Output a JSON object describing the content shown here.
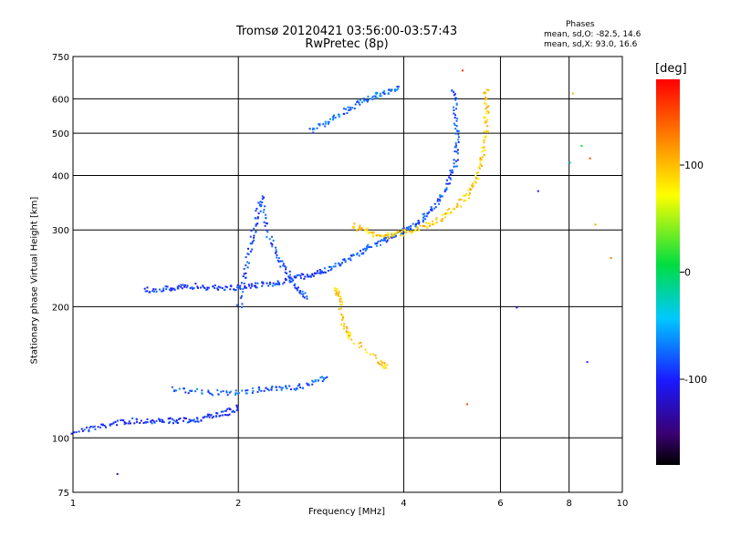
{
  "title": {
    "line1": "Tromsø 20120421 03:56:00-03:57:43",
    "line2": "RwPretec (8p)"
  },
  "phases": {
    "title": "Phases",
    "o_mode": "mean, sd,O: -82.5, 14.6",
    "x_mode": "mean, sd,X:  93.0, 16.6"
  },
  "colorbar": {
    "unit": "[deg]",
    "ticks": [
      {
        "value": 100,
        "label": "100"
      },
      {
        "value": 0,
        "label": "0"
      },
      {
        "value": -100,
        "label": "-100"
      }
    ],
    "range": [
      -180,
      180
    ]
  },
  "chart_data": {
    "type": "scatter",
    "xlabel": "Frequency [MHz]",
    "ylabel": "Stationary phase Virtual Height [km]",
    "x_scale": "log",
    "y_scale": "log",
    "xlim": [
      1,
      10
    ],
    "ylim": [
      75,
      750
    ],
    "x_ticks": [
      {
        "value": 1,
        "label": "1"
      },
      {
        "value": 2,
        "label": "2"
      },
      {
        "value": 4,
        "label": "4"
      },
      {
        "value": 6,
        "label": "6"
      },
      {
        "value": 8,
        "label": "8"
      },
      {
        "value": 10,
        "label": "10"
      }
    ],
    "y_ticks": [
      {
        "value": 75,
        "label": "75"
      },
      {
        "value": 100,
        "label": "100"
      },
      {
        "value": 200,
        "label": "200"
      },
      {
        "value": 300,
        "label": "300"
      },
      {
        "value": 400,
        "label": "400"
      },
      {
        "value": 500,
        "label": "500"
      },
      {
        "value": 600,
        "label": "600"
      },
      {
        "value": 750,
        "label": "750"
      }
    ],
    "grid": true,
    "color_variable": "phase [deg]",
    "traces": [
      {
        "description": "E-region trace",
        "phase": -95,
        "x": [
          1.0,
          1.1,
          1.2,
          1.3,
          1.4,
          1.5,
          1.6,
          1.7,
          1.8,
          1.9,
          2.0
        ],
        "y": [
          104,
          106,
          109,
          110,
          110,
          110,
          110,
          111,
          113,
          115,
          118
        ]
      },
      {
        "description": "lower F trace",
        "phase": -90,
        "x": [
          1.35,
          1.45,
          1.55,
          1.65,
          1.8,
          1.95,
          2.1,
          2.25,
          2.4,
          2.55,
          2.7,
          2.85
        ],
        "y": [
          220,
          220,
          222,
          224,
          222,
          222,
          224,
          226,
          229,
          234,
          238,
          242
        ]
      },
      {
        "description": "F-region vertical smear",
        "phase": -85,
        "x": [
          2.0,
          2.05,
          2.1,
          2.15,
          2.2,
          2.25,
          2.35,
          2.45,
          2.55,
          2.65
        ],
        "y": [
          200,
          240,
          280,
          320,
          360,
          300,
          260,
          240,
          220,
          210
        ]
      },
      {
        "description": "mid-band band",
        "phase": -80,
        "x": [
          1.5,
          1.7,
          1.9,
          2.1,
          2.3,
          2.5,
          2.7,
          2.9
        ],
        "y": [
          130,
          128,
          127,
          129,
          130,
          131,
          133,
          140
        ]
      },
      {
        "description": "O-mode F2 trace",
        "phase": -82,
        "x": [
          2.8,
          3.0,
          3.2,
          3.4,
          3.6,
          3.8,
          4.0,
          4.2,
          4.4,
          4.6,
          4.8,
          4.95,
          5.0,
          4.95,
          4.9
        ],
        "y": [
          240,
          250,
          262,
          272,
          282,
          292,
          300,
          312,
          328,
          350,
          385,
          430,
          490,
          560,
          640
        ]
      },
      {
        "description": "upper F trace",
        "phase": -75,
        "x": [
          2.7,
          2.9,
          3.1,
          3.3,
          3.5,
          3.7,
          3.9
        ],
        "y": [
          510,
          530,
          560,
          590,
          610,
          625,
          640
        ]
      },
      {
        "description": "X-mode F2 trace",
        "phase": 93,
        "x": [
          3.2,
          3.4,
          3.6,
          3.8,
          4.0,
          4.3,
          4.6,
          4.9,
          5.2,
          5.4,
          5.55,
          5.62,
          5.65,
          5.63
        ],
        "y": [
          310,
          300,
          292,
          293,
          298,
          305,
          318,
          335,
          360,
          395,
          440,
          500,
          570,
          640
        ]
      },
      {
        "description": "X-mode low traces",
        "phase": 95,
        "x": [
          3.0,
          3.05,
          3.1,
          3.2,
          3.6,
          3.7
        ],
        "y": [
          220,
          210,
          180,
          170,
          150,
          145
        ]
      }
    ],
    "scattered_points": [
      {
        "x": 7.0,
        "y": 370,
        "phase": -100
      },
      {
        "x": 8.0,
        "y": 430,
        "phase": -30
      },
      {
        "x": 8.4,
        "y": 470,
        "phase": 10
      },
      {
        "x": 8.7,
        "y": 440,
        "phase": 150
      },
      {
        "x": 8.9,
        "y": 310,
        "phase": 110
      },
      {
        "x": 9.5,
        "y": 260,
        "phase": 130
      },
      {
        "x": 6.4,
        "y": 200,
        "phase": -110
      },
      {
        "x": 8.6,
        "y": 150,
        "phase": -100
      },
      {
        "x": 5.2,
        "y": 120,
        "phase": 150
      },
      {
        "x": 1.2,
        "y": 83,
        "phase": -120
      },
      {
        "x": 8.1,
        "y": 620,
        "phase": 100
      },
      {
        "x": 5.1,
        "y": 700,
        "phase": 160
      }
    ]
  }
}
